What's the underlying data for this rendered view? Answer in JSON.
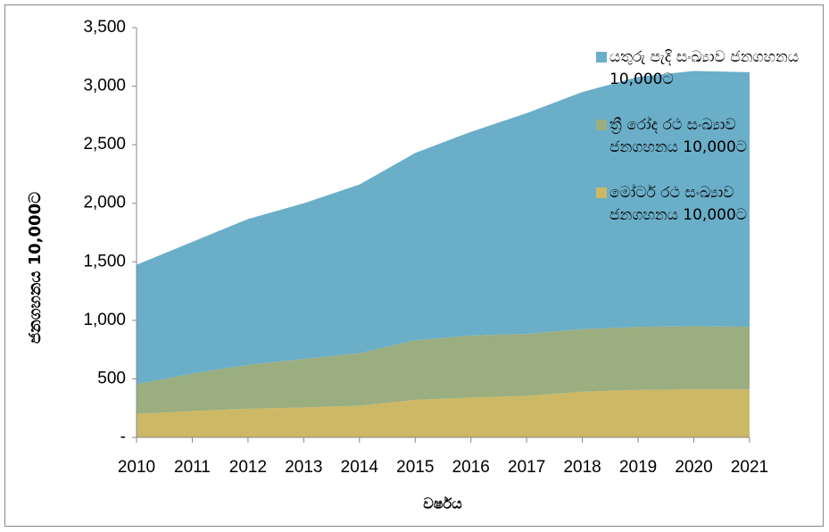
{
  "chart_data": {
    "type": "stacked_area",
    "y_label": "ජනගහනය 10,000ට",
    "x_label": "වර්ෂය",
    "categories": [
      "2010",
      "2011",
      "2012",
      "2013",
      "2014",
      "2015",
      "2016",
      "2017",
      "2018",
      "2019",
      "2020",
      "2021"
    ],
    "series": [
      {
        "name": "මෝටර් රථ සංඛ්‍යාව ජනගහනය 10,000ට",
        "color": "#cdb865",
        "values": [
          200,
          225,
          245,
          255,
          270,
          320,
          340,
          355,
          390,
          405,
          410,
          410
        ]
      },
      {
        "name": "ත්‍රී රෝද රථ සංඛ්‍යාව ජනගහනය 10,000ට",
        "color": "#9bae80",
        "values": [
          255,
          320,
          375,
          415,
          450,
          510,
          530,
          530,
          535,
          540,
          540,
          535
        ]
      },
      {
        "name": "යතුරු පැදි සංඛ්‍යාව ජනගහනය 10,000ට",
        "color": "#6aaec8",
        "values": [
          1020,
          1125,
          1245,
          1330,
          1440,
          1600,
          1740,
          1885,
          2025,
          2135,
          2180,
          2175
        ]
      }
    ],
    "ylim": [
      0,
      3500
    ],
    "yticks": [
      {
        "value": 0,
        "label": "-"
      },
      500,
      {
        "value": 1000,
        "label": "1,000"
      },
      {
        "value": 1500,
        "label": "1,500"
      },
      {
        "value": 2000,
        "label": "2,000"
      },
      {
        "value": 2500,
        "label": "2,500"
      },
      {
        "value": 3000,
        "label": "3,000"
      },
      {
        "value": 3500,
        "label": "3,500"
      }
    ],
    "legend": "right"
  }
}
